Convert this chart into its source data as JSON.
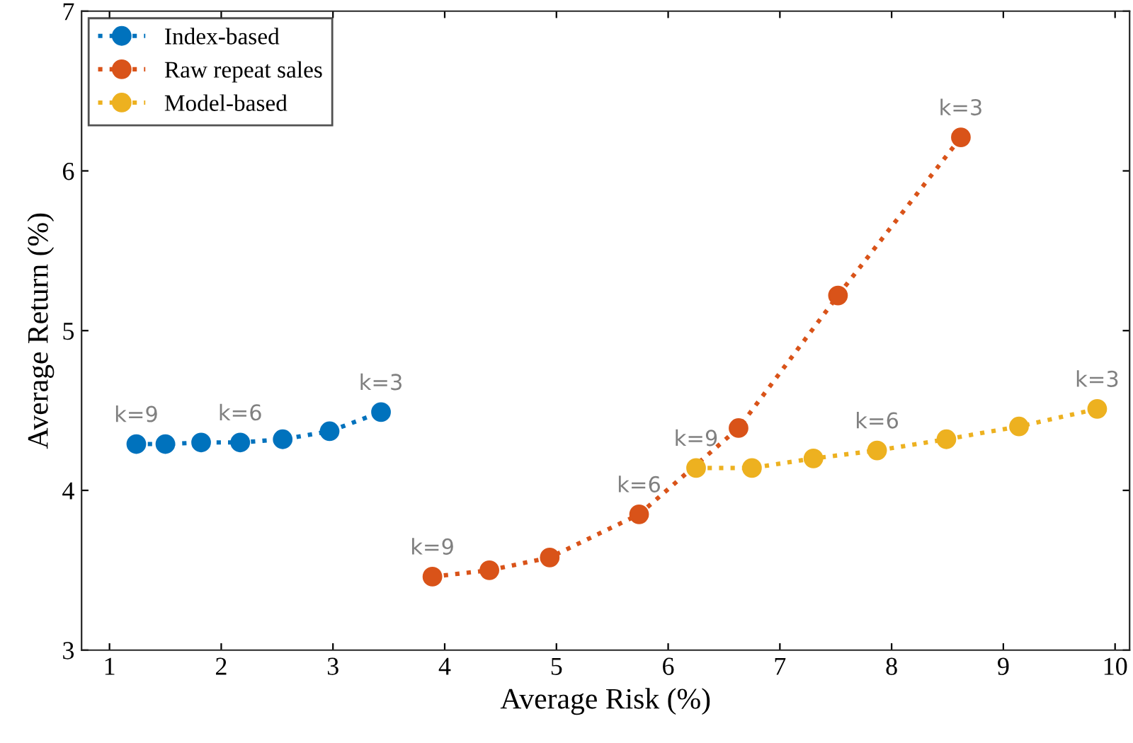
{
  "chart_data": {
    "type": "line",
    "xlabel": "Average Risk (%)",
    "ylabel": "Average Return (%)",
    "xlim": [
      0.75,
      10.13
    ],
    "ylim": [
      3,
      7
    ],
    "xticks": [
      1,
      2,
      3,
      4,
      5,
      6,
      7,
      8,
      9,
      10
    ],
    "yticks": [
      3,
      4,
      5,
      6,
      7
    ],
    "grid": false,
    "legend": "top left",
    "marker": "circle",
    "line_style": "dotted",
    "series": [
      {
        "name": "Index-based",
        "color": "#0072bd",
        "x": [
          1.24,
          1.5,
          1.82,
          2.17,
          2.55,
          2.97,
          3.43
        ],
        "values": [
          4.29,
          4.29,
          4.3,
          4.3,
          4.32,
          4.37,
          4.49
        ]
      },
      {
        "name": "Raw repeat sales",
        "color": "#d95319",
        "x": [
          3.89,
          4.4,
          4.94,
          5.74,
          6.63,
          7.52,
          8.62
        ],
        "values": [
          3.46,
          3.5,
          3.58,
          3.85,
          4.39,
          5.22,
          6.21
        ]
      },
      {
        "name": "Model-based",
        "color": "#edb120",
        "x": [
          6.25,
          6.75,
          7.3,
          7.87,
          8.49,
          9.14,
          9.84
        ],
        "values": [
          4.14,
          4.14,
          4.2,
          4.25,
          4.32,
          4.4,
          4.51
        ]
      }
    ],
    "annotations": [
      {
        "text": "k=9",
        "x": 1.24,
        "y": 4.29
      },
      {
        "text": "k=6",
        "x": 2.17,
        "y": 4.3
      },
      {
        "text": "k=3",
        "x": 3.43,
        "y": 4.49
      },
      {
        "text": "k=9",
        "x": 3.89,
        "y": 3.46
      },
      {
        "text": "k=6",
        "x": 5.74,
        "y": 3.85
      },
      {
        "text": "k=3",
        "x": 8.62,
        "y": 6.21
      },
      {
        "text": "k=9",
        "x": 6.25,
        "y": 4.14
      },
      {
        "text": "k=6",
        "x": 7.87,
        "y": 4.25
      },
      {
        "text": "k=3",
        "x": 9.84,
        "y": 4.51
      }
    ]
  }
}
